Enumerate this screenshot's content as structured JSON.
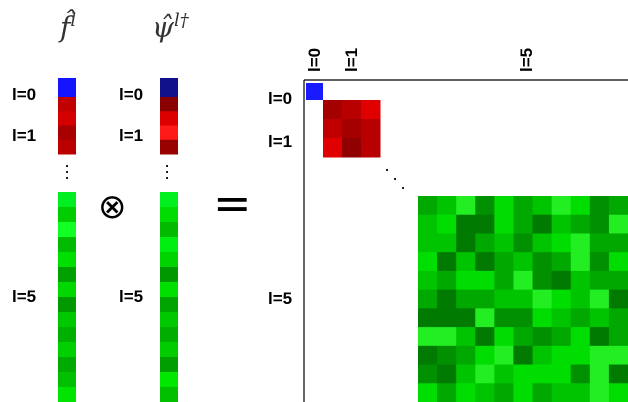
{
  "headers": {
    "f": "f̂",
    "f_sup": "l",
    "psi": "ψ̂",
    "psi_sup": "l†"
  },
  "labels": {
    "l0": "l=0",
    "l1": "l=1",
    "l5": "l=5"
  },
  "operators": {
    "tensor": "⊗",
    "equals": "="
  },
  "vdots": "⋮",
  "ddots": "⋱",
  "colors": {
    "blue": "#1a1aff",
    "darkblue": "#10108a",
    "reds": [
      "#e00000",
      "#c00000",
      "#a50000",
      "#b80000",
      "#ff1a1a",
      "#900000"
    ],
    "greens": [
      "#00dd00",
      "#00c400",
      "#00a800",
      "#009000",
      "#22ee22",
      "#007a00"
    ]
  },
  "vector_f": {
    "l0": [
      "#1414ff"
    ],
    "l1": [
      "#c10000",
      "#d40000",
      "#a80000",
      "#bb0000"
    ],
    "l5": [
      "#00ee22",
      "#00cc00",
      "#11ff22",
      "#00bb00",
      "#00e000",
      "#00a000",
      "#00d800",
      "#009a00",
      "#00c800",
      "#00b000",
      "#00d000",
      "#00aa00",
      "#00c000",
      "#00e400"
    ]
  },
  "vector_psi": {
    "l0": [
      "#11118c"
    ],
    "l1": [
      "#880000",
      "#dd0000",
      "#ff1a1a",
      "#990000"
    ],
    "l5": [
      "#00f020",
      "#00dd00",
      "#00bb00",
      "#00ee10",
      "#00d400",
      "#009800",
      "#00e000",
      "#00a400",
      "#00c800",
      "#00ae00",
      "#00cc00",
      "#009e00",
      "#00e800",
      "#00c000"
    ]
  }
}
